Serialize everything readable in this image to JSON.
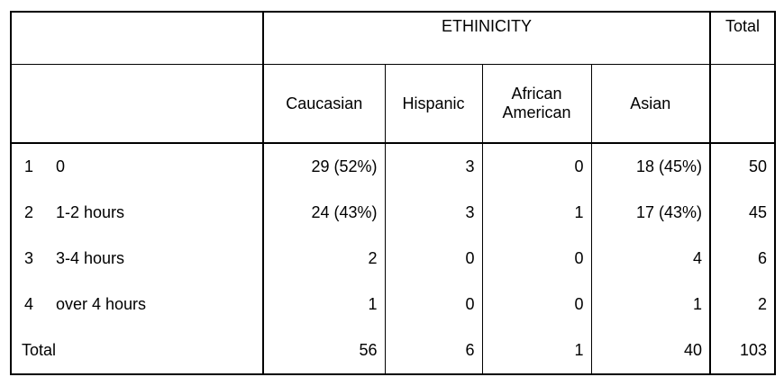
{
  "header": {
    "group_label": "ETHINICITY",
    "total_label": "Total",
    "columns": [
      "Caucasian",
      "Hispanic",
      "African American",
      "Asian"
    ],
    "african_line1": "African",
    "african_line2": "American"
  },
  "rows": [
    {
      "code": "1",
      "label": "0",
      "caucasian": "29 (52%)",
      "hispanic": "3",
      "african_american": "0",
      "asian": "18 (45%)",
      "total": "50"
    },
    {
      "code": "2",
      "label": "1-2 hours",
      "caucasian": "24 (43%)",
      "hispanic": "3",
      "african_american": "1",
      "asian": "17 (43%)",
      "total": "45"
    },
    {
      "code": "3",
      "label": "3-4 hours",
      "caucasian": "2",
      "hispanic": "0",
      "african_american": "0",
      "asian": "4",
      "total": "6"
    },
    {
      "code": "4",
      "label": "over 4 hours",
      "caucasian": "1",
      "hispanic": "0",
      "african_american": "0",
      "asian": "1",
      "total": "2"
    }
  ],
  "totals": {
    "label": "Total",
    "caucasian": "56",
    "hispanic": "6",
    "african_american": "1",
    "asian": "40",
    "total": "103"
  }
}
